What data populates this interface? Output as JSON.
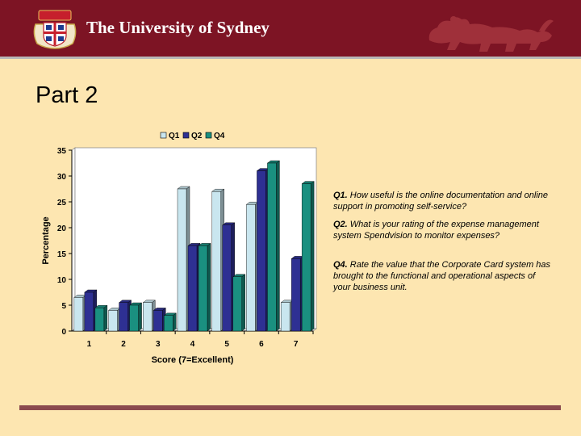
{
  "header": {
    "title": "The University of Sydney"
  },
  "page": {
    "title": "Part 2"
  },
  "questions": [
    {
      "id": "Q1.",
      "text": " How useful is the online documentation and online support in promoting self-service?"
    },
    {
      "id": "Q2.",
      "text": " What is your rating of the expense management system Spendvision to monitor expenses?"
    },
    {
      "id": "Q4.",
      "text": " Rate the value that the Corporate Card system has brought to the functional and operational aspects of your business unit."
    }
  ],
  "colors": {
    "header": "#7d1424",
    "background": "#fde6b1",
    "Q1": "#c9e6ef",
    "Q2": "#2e3093",
    "Q4": "#1a9080"
  },
  "chart_data": {
    "type": "bar",
    "categories": [
      "1",
      "2",
      "3",
      "4",
      "5",
      "6",
      "7"
    ],
    "series": [
      {
        "name": "Q1",
        "values": [
          6.5,
          4,
          5.5,
          27.5,
          27,
          24.5,
          5.5
        ]
      },
      {
        "name": "Q2",
        "values": [
          7.5,
          5.5,
          4,
          16.5,
          20.5,
          31,
          14
        ]
      },
      {
        "name": "Q4",
        "values": [
          4.5,
          5,
          3,
          16.5,
          10.5,
          32.5,
          28.5
        ]
      }
    ],
    "xlabel": "Score (7=Excellent)",
    "ylabel": "Percentage",
    "ylim": [
      0,
      35
    ],
    "yticks": [
      0,
      5,
      10,
      15,
      20,
      25,
      30,
      35
    ],
    "legend_position": "top",
    "grid": false
  }
}
